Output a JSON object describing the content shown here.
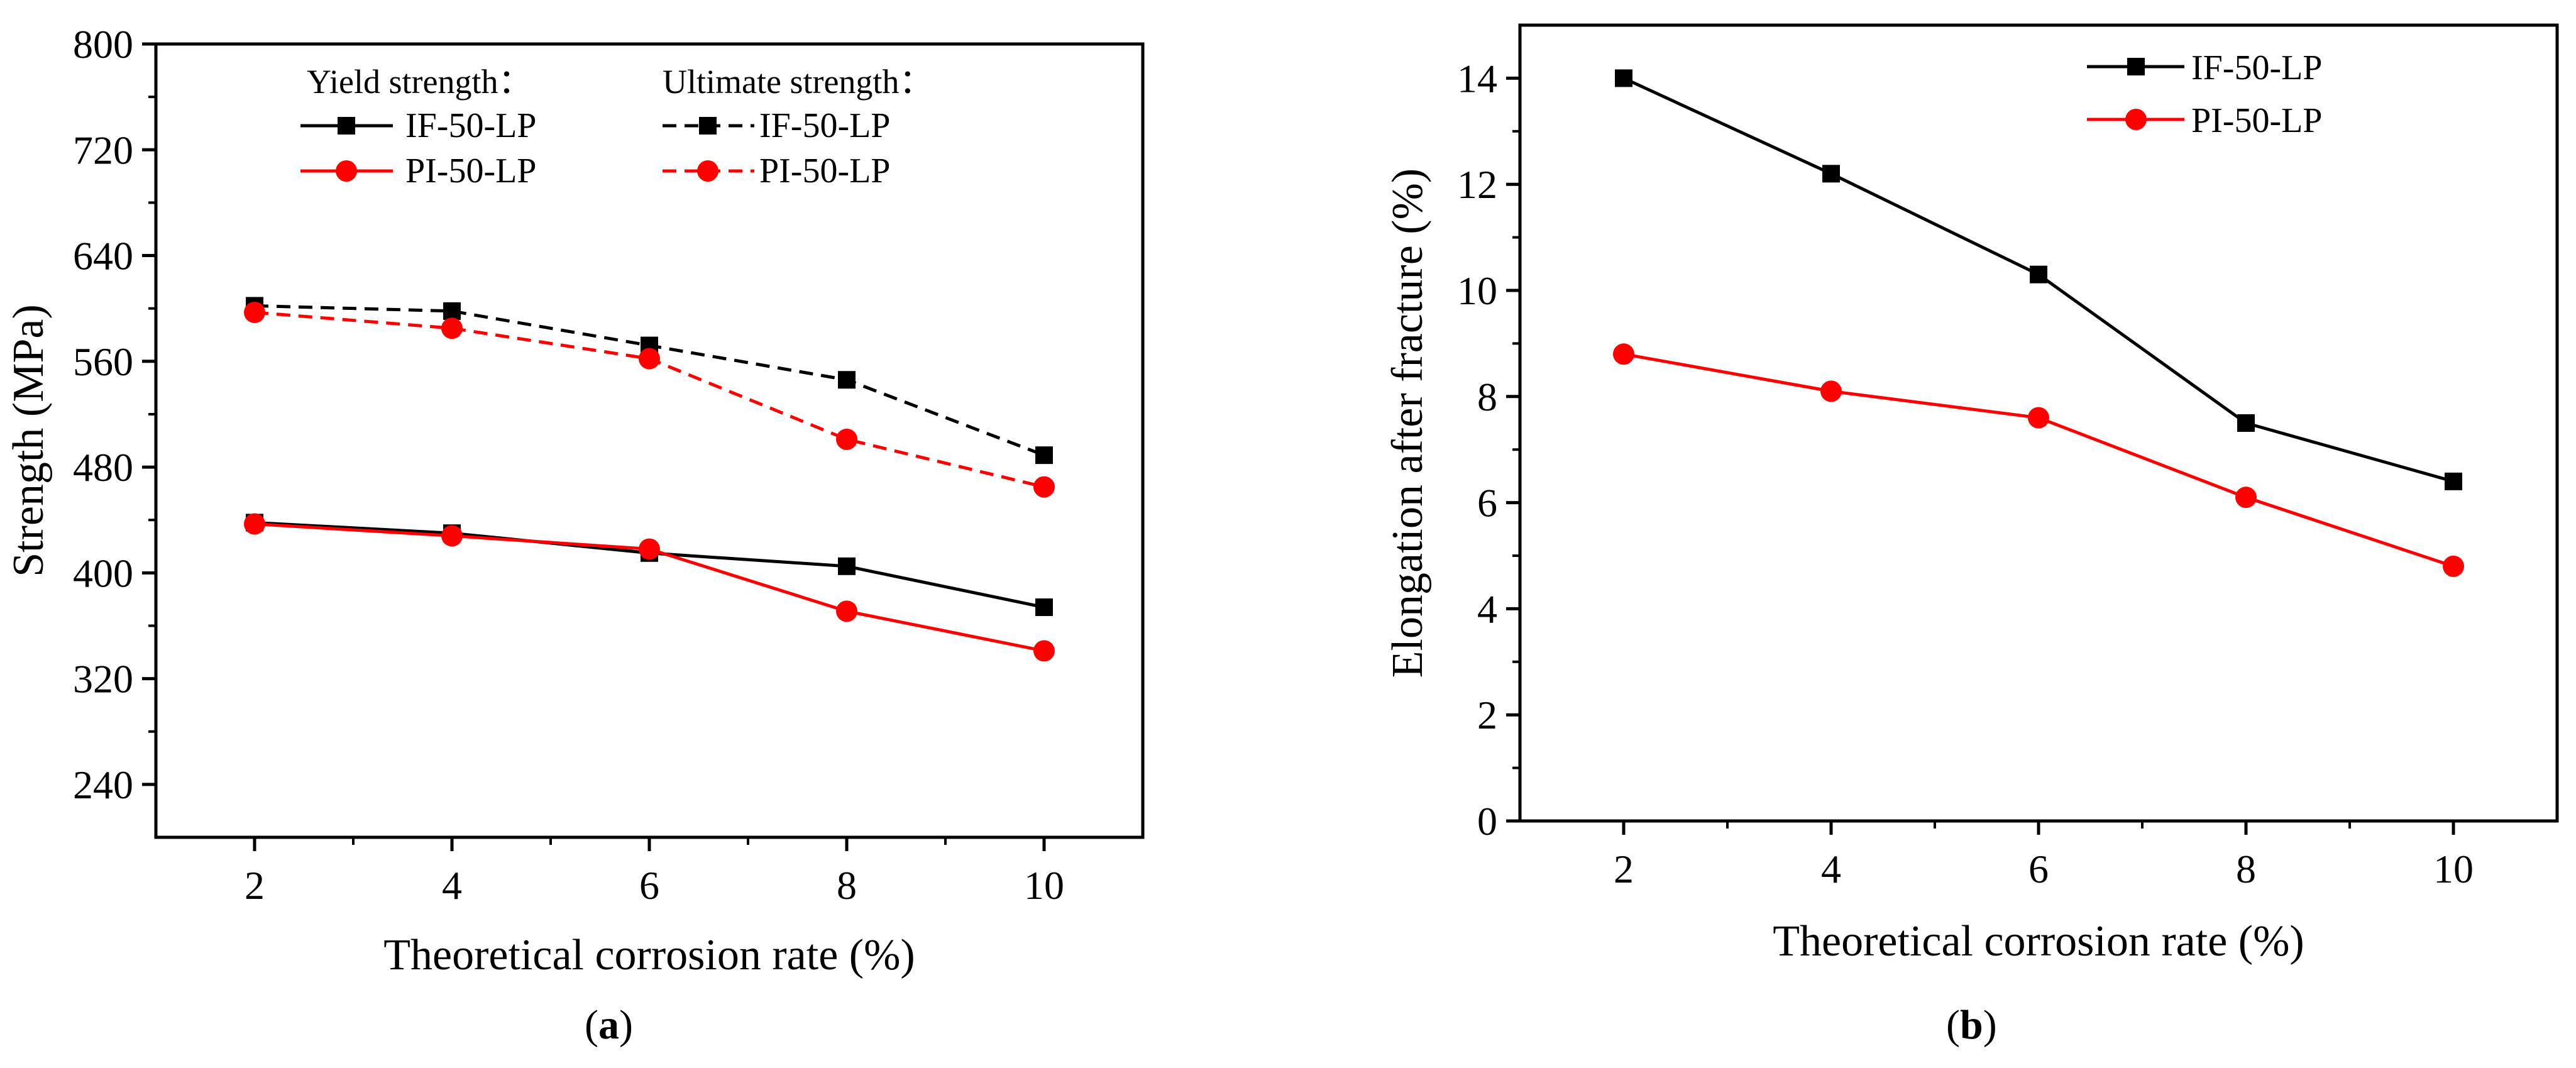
{
  "chart_data": [
    {
      "type": "line",
      "panel_label": "a",
      "title": "",
      "xlabel": "Theoretical corrosion rate (%)",
      "ylabel": "Strength (MPa)",
      "xlim": [
        1,
        11
      ],
      "ylim": [
        200,
        800
      ],
      "xticks": [
        2,
        4,
        6,
        8,
        10
      ],
      "yticks": [
        240,
        320,
        400,
        480,
        560,
        640,
        720,
        800
      ],
      "legend_groups": [
        "Yield strength：",
        "Ultimate strength："
      ],
      "x": [
        2,
        4,
        6,
        8,
        10
      ],
      "series": [
        {
          "name": "IF-50-LP",
          "group": "Yield strength：",
          "marker": "square",
          "color": "#000000",
          "dash": "solid",
          "values": [
            438,
            430,
            415,
            405,
            374
          ]
        },
        {
          "name": "PI-50-LP",
          "group": "Yield strength：",
          "marker": "circle",
          "color": "#ff0000",
          "dash": "solid",
          "values": [
            437,
            428,
            418,
            371,
            341
          ]
        },
        {
          "name": "IF-50-LP",
          "group": "Ultimate strength：",
          "marker": "square",
          "color": "#000000",
          "dash": "dashed",
          "values": [
            602,
            598,
            572,
            546,
            489
          ]
        },
        {
          "name": "PI-50-LP",
          "group": "Ultimate strength：",
          "marker": "circle",
          "color": "#ff0000",
          "dash": "dashed",
          "values": [
            597,
            585,
            562,
            501,
            465
          ]
        }
      ]
    },
    {
      "type": "line",
      "panel_label": "b",
      "title": "",
      "xlabel": "Theoretical corrosion rate (%)",
      "ylabel": "Elongation after fracture (%)",
      "xlim": [
        1,
        11
      ],
      "ylim": [
        0,
        15
      ],
      "xticks": [
        2,
        4,
        6,
        8,
        10
      ],
      "yticks": [
        0,
        2,
        4,
        6,
        8,
        10,
        12,
        14
      ],
      "x": [
        2,
        4,
        6,
        8,
        10
      ],
      "series": [
        {
          "name": "IF-50-LP",
          "marker": "square",
          "color": "#000000",
          "dash": "solid",
          "values": [
            14.0,
            12.2,
            10.3,
            7.5,
            6.4
          ]
        },
        {
          "name": "PI-50-LP",
          "marker": "circle",
          "color": "#ff0000",
          "dash": "solid",
          "values": [
            8.8,
            8.1,
            7.6,
            6.1,
            4.8
          ]
        }
      ]
    }
  ]
}
